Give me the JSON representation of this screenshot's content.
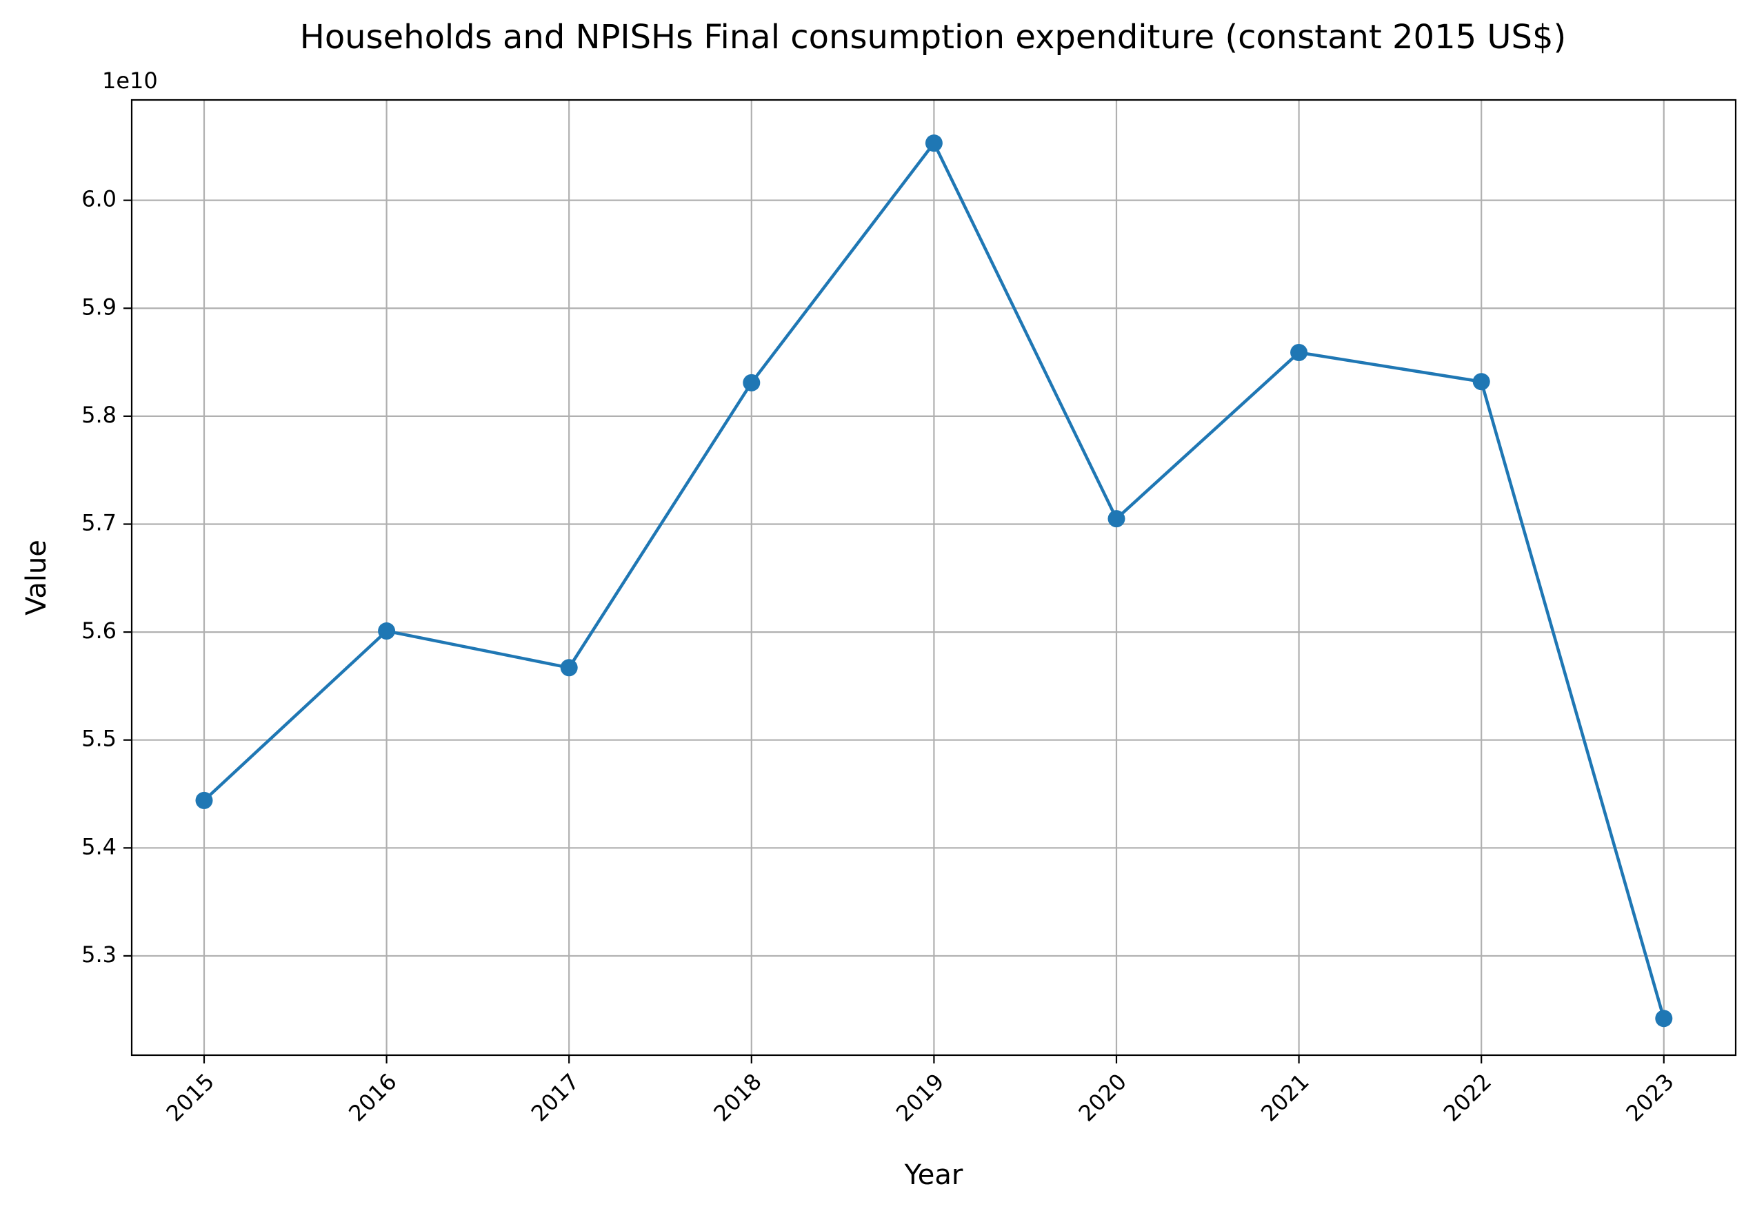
{
  "chart_data": {
    "type": "line",
    "title": "Households and NPISHs Final consumption expenditure (constant 2015 US$)",
    "xlabel": "Year",
    "ylabel": "Value",
    "y_offset_label": "1e10",
    "categories": [
      "2015",
      "2016",
      "2017",
      "2018",
      "2019",
      "2020",
      "2021",
      "2022",
      "2023"
    ],
    "series": [
      {
        "values": [
          54440000000,
          56010000000,
          55670000000,
          58310000000,
          60530000000,
          57050000000,
          58590000000,
          58320000000,
          52420000000
        ],
        "color": "#1f77b4",
        "marker": "circle"
      }
    ],
    "ylim": [
      52080000000,
      60930000000
    ],
    "y_ticks": [
      53000000000,
      54000000000,
      55000000000,
      56000000000,
      57000000000,
      58000000000,
      59000000000,
      60000000000
    ],
    "y_tick_labels": [
      "5.3",
      "5.4",
      "5.5",
      "5.6",
      "5.7",
      "5.8",
      "5.9",
      "6.0"
    ],
    "grid": true,
    "x_tick_rotation_deg": 45
  }
}
